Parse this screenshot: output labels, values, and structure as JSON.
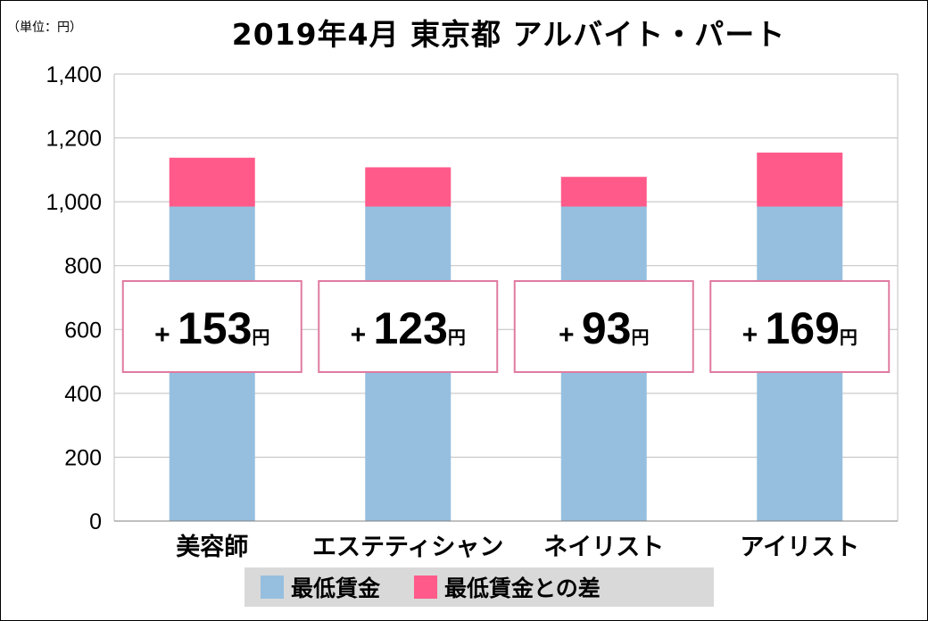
{
  "unit_label": "（単位：円）",
  "title": "2019年4月 東京都 アルバイト・パート",
  "colors": {
    "base": "#96bfdf",
    "diff": "#ff5a8a",
    "box_border": "#e07aa0",
    "grid": "#bfbfbf"
  },
  "chart_data": {
    "type": "bar",
    "stacked": true,
    "title": "2019年4月 東京都 アルバイト・パート",
    "unit": "円",
    "categories": [
      "美容師",
      "エステティシャン",
      "ネイリスト",
      "アイリスト"
    ],
    "series": [
      {
        "name": "最低賃金",
        "values": [
          985,
          985,
          985,
          985
        ]
      },
      {
        "name": "最低賃金との差",
        "values": [
          153,
          123,
          93,
          169
        ]
      }
    ],
    "annotations": [
      {
        "plus": "+",
        "value": "153",
        "unit": "円"
      },
      {
        "plus": "+",
        "value": "123",
        "unit": "円"
      },
      {
        "plus": "+",
        "value": "93",
        "unit": "円"
      },
      {
        "plus": "+",
        "value": "169",
        "unit": "円"
      }
    ],
    "ylim": [
      0,
      1400
    ],
    "yticks": [
      0,
      200,
      400,
      600,
      800,
      1000,
      1200,
      1400
    ],
    "ytick_labels": [
      "0",
      "200",
      "400",
      "600",
      "800",
      "1,000",
      "1,200",
      "1,400"
    ],
    "grid": true,
    "legend_position": "bottom"
  },
  "legend": [
    {
      "label": "最低賃金",
      "color": "#96bfdf"
    },
    {
      "label": "最低賃金との差",
      "color": "#ff5a8a"
    }
  ]
}
